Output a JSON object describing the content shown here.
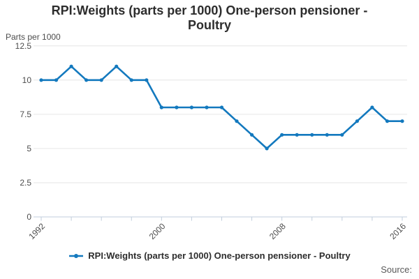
{
  "title": {
    "line1": "RPI:Weights (parts per 1000) One-person pensioner -",
    "line2": "Poultry"
  },
  "y_axis_title": "Parts per 1000",
  "legend": {
    "label": "RPI:Weights (parts per 1000) One-person pensioner - Poultry"
  },
  "source": {
    "label": "Source:"
  },
  "colors": {
    "line": "#1379BE",
    "grid": "#E6E6E6",
    "axis": "#C1CEDC",
    "tick_text": "#4D4D4D",
    "title_text": "#2D2D2D",
    "source_text": "#595959"
  },
  "chart_data": {
    "type": "line",
    "title": "RPI:Weights (parts per 1000) One-person pensioner - Poultry",
    "ylabel": "Parts per 1000",
    "xlabel": "",
    "x": [
      1992,
      1993,
      1994,
      1995,
      1996,
      1997,
      1998,
      1999,
      2000,
      2001,
      2002,
      2003,
      2004,
      2005,
      2006,
      2007,
      2008,
      2009,
      2010,
      2011,
      2012,
      2013,
      2014,
      2015,
      2016
    ],
    "series": [
      {
        "name": "RPI:Weights (parts per 1000) One-person pensioner - Poultry",
        "values": [
          10,
          10,
          11,
          10,
          10,
          11,
          10,
          10,
          8,
          8,
          8,
          8,
          8,
          7,
          6,
          5,
          6,
          6,
          6,
          6,
          6,
          7,
          8,
          7,
          7
        ]
      }
    ],
    "ylim": [
      0,
      12.5
    ],
    "yticks": [
      0,
      2.5,
      5,
      7.5,
      10,
      12.5
    ],
    "xticks": [
      1992,
      1994,
      1996,
      1998,
      2000,
      2002,
      2004,
      2006,
      2008,
      2010,
      2012,
      2014,
      2016
    ],
    "xtick_labels_shown": [
      "1992",
      "2000",
      "2008",
      "2016"
    ],
    "grid": "horizontal-only",
    "legend_position": "bottom",
    "marker": "dot"
  }
}
